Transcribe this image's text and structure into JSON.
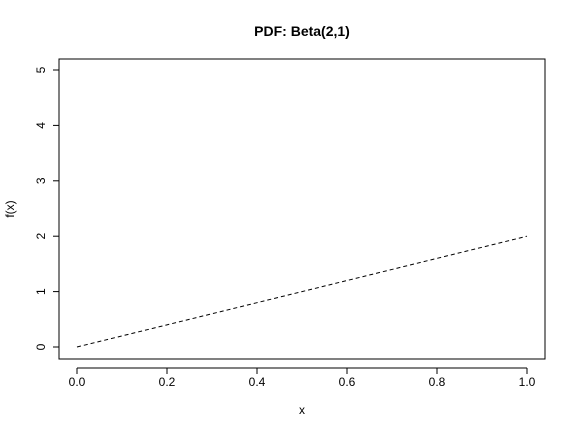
{
  "chart_data": {
    "type": "line",
    "title": "PDF: Beta(2,1)",
    "xlabel": "x",
    "ylabel": "f(x)",
    "xlim": [
      0,
      1
    ],
    "ylim": [
      0,
      5
    ],
    "xticks": [
      "0.0",
      "0.2",
      "0.4",
      "0.6",
      "0.8",
      "1.0"
    ],
    "xtick_values": [
      0,
      0.2,
      0.4,
      0.6,
      0.8,
      1.0
    ],
    "yticks": [
      "0",
      "1",
      "2",
      "3",
      "4",
      "5"
    ],
    "ytick_values": [
      0,
      1,
      2,
      3,
      4,
      5
    ],
    "grid": false,
    "line_style": "dashed",
    "line_color": "#000000",
    "series": [
      {
        "x": [
          0,
          0.1,
          0.2,
          0.3,
          0.4,
          0.5,
          0.6,
          0.7,
          0.8,
          0.9,
          1.0
        ],
        "y": [
          0,
          0.2,
          0.4,
          0.6,
          0.8,
          1.0,
          1.2,
          1.4,
          1.6,
          1.8,
          2.0
        ]
      }
    ]
  }
}
